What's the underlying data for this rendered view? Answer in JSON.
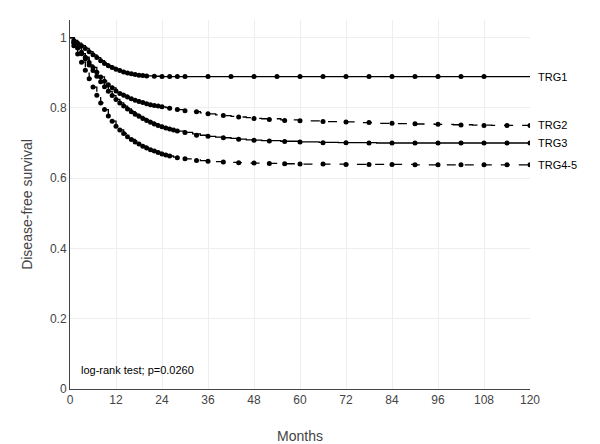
{
  "chart_data": {
    "type": "step",
    "xlabel": "Months",
    "ylabel": "Disease-free survival",
    "annotation": "log-rank test; p=0.0260",
    "xlim": [
      0,
      120
    ],
    "ylim": [
      0,
      1.05
    ],
    "xticks": [
      0,
      12,
      24,
      36,
      48,
      60,
      72,
      84,
      96,
      108,
      120
    ],
    "yticks": [
      0,
      0.2,
      0.4,
      0.6,
      0.8,
      1
    ],
    "grid": true,
    "marker": "circle",
    "series": [
      {
        "name": "TRG1",
        "line_style": "solid",
        "color": "#000000",
        "x": [
          0,
          1,
          2,
          3,
          4,
          5,
          6,
          7,
          8,
          9,
          10,
          11,
          12,
          13,
          14,
          15,
          16,
          17,
          18,
          19,
          20,
          22,
          24,
          26,
          28,
          30,
          33,
          36,
          40,
          45,
          50,
          55,
          60,
          65,
          70,
          75,
          80,
          85,
          90,
          95,
          100,
          105,
          110,
          115,
          120
        ],
        "values": [
          1.0,
          0.992,
          0.984,
          0.977,
          0.969,
          0.96,
          0.951,
          0.943,
          0.934,
          0.926,
          0.92,
          0.915,
          0.91,
          0.906,
          0.902,
          0.899,
          0.897,
          0.895,
          0.893,
          0.892,
          0.891,
          0.89,
          0.889,
          0.889,
          0.889,
          0.889,
          0.889,
          0.889,
          0.889,
          0.889,
          0.889,
          0.889,
          0.889,
          0.889,
          0.889,
          0.889,
          0.889,
          0.889,
          0.889,
          0.889,
          0.889,
          0.889,
          0.889,
          0.889,
          0.889
        ],
        "censor_x": [
          1,
          2,
          3,
          4,
          5,
          6,
          7,
          8,
          9,
          10,
          11,
          12,
          13,
          14,
          15,
          16,
          17,
          18,
          19,
          20,
          22,
          24,
          26,
          28,
          30,
          36,
          42,
          48,
          54,
          60,
          66,
          72,
          78,
          84,
          90,
          96,
          102,
          108
        ],
        "censor_values": [
          0.992,
          0.984,
          0.977,
          0.969,
          0.96,
          0.951,
          0.943,
          0.934,
          0.926,
          0.92,
          0.915,
          0.91,
          0.906,
          0.902,
          0.899,
          0.897,
          0.895,
          0.893,
          0.892,
          0.891,
          0.89,
          0.889,
          0.889,
          0.889,
          0.889,
          0.889,
          0.889,
          0.889,
          0.889,
          0.889,
          0.889,
          0.889,
          0.889,
          0.889,
          0.889,
          0.889,
          0.889,
          0.889
        ]
      },
      {
        "name": "TRG2",
        "line_style": "dashed",
        "color": "#000000",
        "x": [
          0,
          1,
          2,
          3,
          4,
          5,
          6,
          7,
          8,
          9,
          10,
          11,
          12,
          13,
          14,
          15,
          16,
          17,
          18,
          19,
          20,
          21,
          22,
          23,
          24,
          25,
          26,
          27,
          28,
          30,
          32,
          34,
          36,
          38,
          40,
          42,
          44,
          46,
          48,
          50,
          55,
          60,
          65,
          70,
          75,
          80,
          85,
          90,
          95,
          100,
          105,
          110,
          115,
          120
        ],
        "values": [
          1.0,
          0.986,
          0.972,
          0.958,
          0.944,
          0.929,
          0.915,
          0.901,
          0.888,
          0.876,
          0.866,
          0.857,
          0.848,
          0.841,
          0.836,
          0.831,
          0.826,
          0.822,
          0.818,
          0.815,
          0.812,
          0.809,
          0.807,
          0.805,
          0.803,
          0.801,
          0.799,
          0.797,
          0.795,
          0.792,
          0.789,
          0.786,
          0.783,
          0.78,
          0.778,
          0.776,
          0.774,
          0.772,
          0.77,
          0.769,
          0.766,
          0.763,
          0.761,
          0.76,
          0.758,
          0.756,
          0.755,
          0.754,
          0.753,
          0.752,
          0.751,
          0.75,
          0.75,
          0.75
        ],
        "censor_x": [
          1,
          2,
          3,
          4,
          5,
          6,
          7,
          8,
          9,
          10,
          11,
          12,
          13,
          14,
          15,
          16,
          17,
          18,
          19,
          20,
          21,
          22,
          23,
          24,
          26,
          28,
          30,
          33,
          36,
          40,
          44,
          48,
          52,
          56,
          60,
          66,
          72,
          78,
          84,
          90,
          96,
          102,
          108,
          114,
          120
        ],
        "censor_values": [
          0.986,
          0.972,
          0.958,
          0.944,
          0.929,
          0.915,
          0.901,
          0.888,
          0.876,
          0.866,
          0.857,
          0.848,
          0.841,
          0.836,
          0.831,
          0.826,
          0.822,
          0.818,
          0.815,
          0.812,
          0.809,
          0.807,
          0.805,
          0.803,
          0.799,
          0.795,
          0.792,
          0.789,
          0.783,
          0.778,
          0.774,
          0.77,
          0.767,
          0.764,
          0.763,
          0.761,
          0.76,
          0.758,
          0.756,
          0.755,
          0.753,
          0.751,
          0.75,
          0.75,
          0.75
        ]
      },
      {
        "name": "TRG3",
        "line_style": "solid",
        "color": "#000000",
        "x": [
          0,
          1,
          2,
          3,
          4,
          5,
          6,
          7,
          8,
          9,
          10,
          11,
          12,
          13,
          14,
          15,
          16,
          17,
          18,
          19,
          20,
          21,
          22,
          23,
          24,
          25,
          26,
          27,
          28,
          30,
          32,
          34,
          36,
          38,
          40,
          42,
          44,
          46,
          48,
          50,
          55,
          60,
          65,
          70,
          75,
          80,
          85,
          90,
          95,
          100,
          105,
          110,
          115,
          120
        ],
        "values": [
          1.0,
          0.985,
          0.97,
          0.954,
          0.939,
          0.922,
          0.906,
          0.89,
          0.874,
          0.86,
          0.847,
          0.835,
          0.824,
          0.814,
          0.805,
          0.797,
          0.789,
          0.782,
          0.776,
          0.77,
          0.764,
          0.759,
          0.754,
          0.75,
          0.746,
          0.743,
          0.74,
          0.737,
          0.734,
          0.73,
          0.726,
          0.722,
          0.719,
          0.717,
          0.715,
          0.713,
          0.711,
          0.709,
          0.708,
          0.707,
          0.705,
          0.703,
          0.702,
          0.701,
          0.701,
          0.7,
          0.7,
          0.7,
          0.7,
          0.7,
          0.7,
          0.7,
          0.7,
          0.7
        ],
        "censor_x": [
          1,
          2,
          3,
          4,
          5,
          6,
          7,
          8,
          9,
          10,
          11,
          12,
          13,
          14,
          15,
          16,
          17,
          18,
          19,
          20,
          21,
          22,
          23,
          24,
          25,
          26,
          27,
          28,
          30,
          33,
          36,
          40,
          44,
          48,
          52,
          56,
          60,
          66,
          72,
          78,
          84,
          90,
          96,
          102,
          108,
          114,
          120
        ],
        "censor_values": [
          0.985,
          0.97,
          0.954,
          0.939,
          0.922,
          0.906,
          0.89,
          0.874,
          0.86,
          0.847,
          0.835,
          0.824,
          0.814,
          0.805,
          0.797,
          0.789,
          0.782,
          0.776,
          0.77,
          0.764,
          0.759,
          0.754,
          0.75,
          0.746,
          0.743,
          0.74,
          0.737,
          0.734,
          0.73,
          0.722,
          0.719,
          0.715,
          0.711,
          0.708,
          0.706,
          0.704,
          0.703,
          0.701,
          0.701,
          0.7,
          0.7,
          0.7,
          0.7,
          0.7,
          0.7,
          0.7,
          0.7
        ]
      },
      {
        "name": "TRG4-5",
        "line_style": "dashed",
        "color": "#000000",
        "x": [
          0,
          1,
          2,
          3,
          4,
          5,
          6,
          7,
          8,
          9,
          10,
          11,
          12,
          13,
          14,
          15,
          16,
          17,
          18,
          19,
          20,
          21,
          22,
          23,
          24,
          25,
          26,
          27,
          28,
          30,
          32,
          34,
          36,
          38,
          40,
          42,
          44,
          46,
          48,
          50,
          55,
          60,
          65,
          70,
          75,
          80,
          85,
          90,
          95,
          100,
          105,
          110,
          115,
          120
        ],
        "values": [
          1.0,
          0.977,
          0.953,
          0.93,
          0.907,
          0.883,
          0.859,
          0.836,
          0.814,
          0.795,
          0.777,
          0.762,
          0.748,
          0.737,
          0.727,
          0.718,
          0.71,
          0.703,
          0.697,
          0.691,
          0.686,
          0.681,
          0.677,
          0.673,
          0.669,
          0.666,
          0.663,
          0.66,
          0.658,
          0.655,
          0.652,
          0.65,
          0.648,
          0.647,
          0.646,
          0.645,
          0.644,
          0.643,
          0.643,
          0.642,
          0.641,
          0.64,
          0.64,
          0.64,
          0.639,
          0.639,
          0.639,
          0.638,
          0.638,
          0.638,
          0.638,
          0.638,
          0.638,
          0.638
        ],
        "censor_x": [
          1,
          2,
          3,
          4,
          5,
          6,
          7,
          8,
          9,
          10,
          11,
          12,
          13,
          14,
          15,
          16,
          17,
          18,
          19,
          20,
          21,
          22,
          23,
          24,
          25,
          26,
          28,
          30,
          33,
          36,
          40,
          44,
          48,
          52,
          56,
          60,
          66,
          72,
          78,
          84,
          90,
          96,
          102,
          108,
          114,
          120
        ],
        "censor_values": [
          0.977,
          0.953,
          0.93,
          0.907,
          0.883,
          0.859,
          0.836,
          0.814,
          0.795,
          0.777,
          0.762,
          0.748,
          0.737,
          0.727,
          0.718,
          0.71,
          0.703,
          0.697,
          0.691,
          0.686,
          0.681,
          0.677,
          0.673,
          0.669,
          0.666,
          0.663,
          0.658,
          0.655,
          0.65,
          0.648,
          0.646,
          0.644,
          0.643,
          0.642,
          0.641,
          0.64,
          0.64,
          0.639,
          0.639,
          0.639,
          0.638,
          0.638,
          0.638,
          0.638,
          0.638,
          0.638
        ]
      }
    ]
  }
}
